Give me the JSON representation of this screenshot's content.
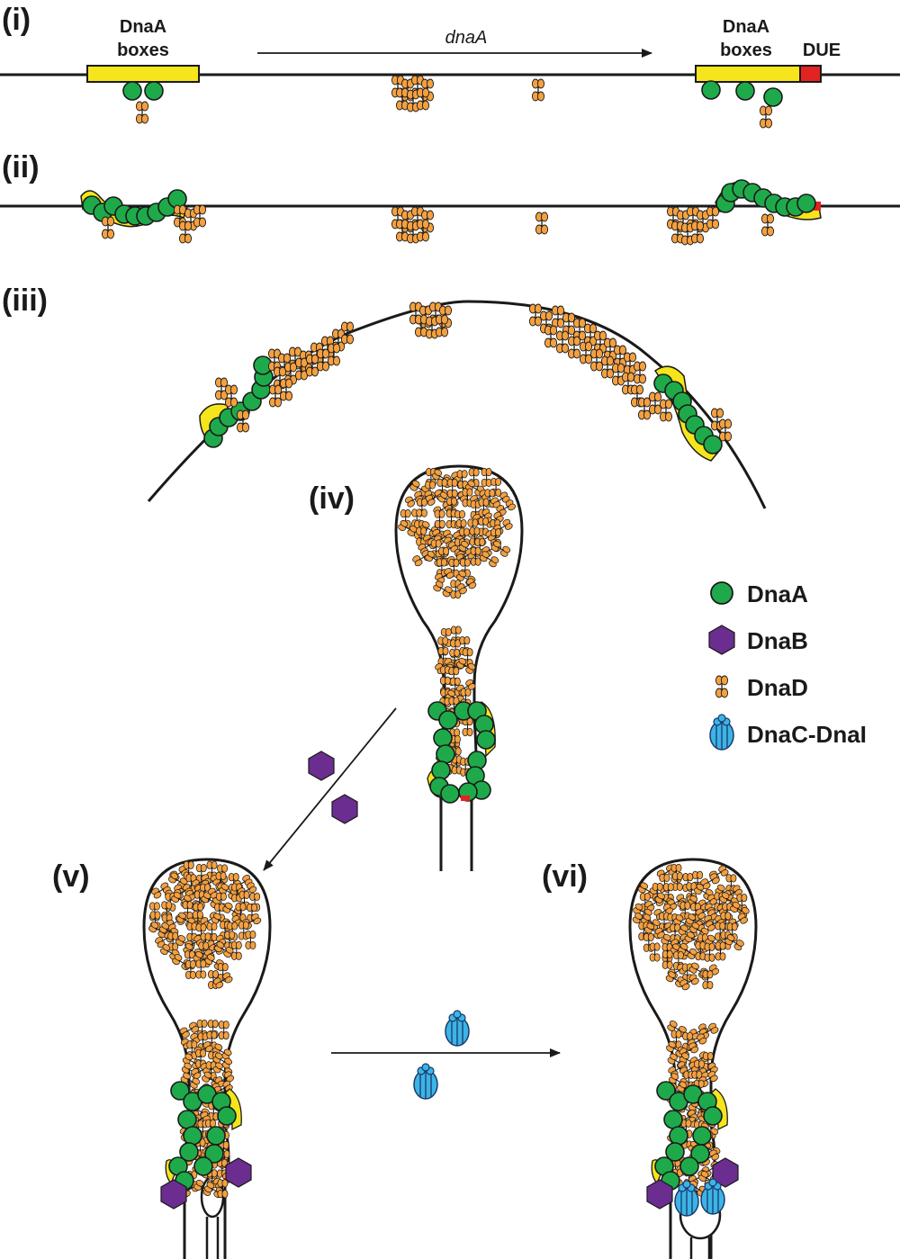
{
  "steps": [
    "(i)",
    "(ii)",
    "(iii)",
    "(iv)",
    "(v)",
    "(vi)"
  ],
  "labels": {
    "box_line1": "DnaA",
    "box_line2": "boxes",
    "gene": "dnaA",
    "due": "DUE"
  },
  "legend": [
    {
      "name": "DnaA",
      "icon": "green-circle"
    },
    {
      "name": "DnaB",
      "icon": "purple-hexagon"
    },
    {
      "name": "DnaD",
      "icon": "orange-dumbbell"
    },
    {
      "name": "DnaC-DnaI",
      "icon": "blue-barrel"
    }
  ],
  "colors": {
    "dnaA": "#1eaa4a",
    "dnaB": "#6b2d8f",
    "dnaD": "#f4a040",
    "dnaCI": "#3cb4e6",
    "box": "#f6e51c",
    "due": "#e32222",
    "dna": "#1a1a1a"
  }
}
